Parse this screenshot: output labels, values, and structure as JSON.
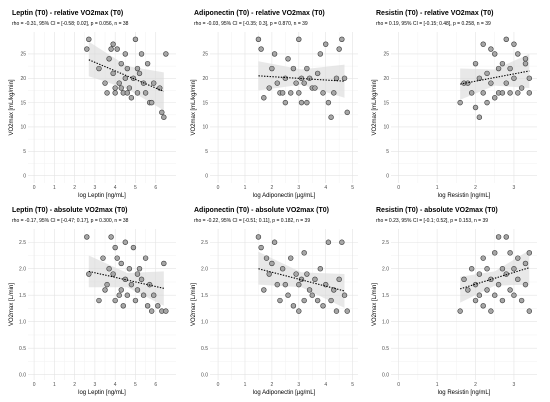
{
  "chart_data": [
    {
      "type": "scatter",
      "title": "Leptin (T0) - relative VO2max (T0)",
      "subtitle": "rho = -0.31, 95% CI = [-0.58; 0.02], p = 0.056, n = 38",
      "xlabel": "log Leptin [ng/mL]",
      "ylabel": "VO2max [mL/kg/min]",
      "xlim": [
        -0.3,
        7
      ],
      "xticks": [
        0,
        1,
        2,
        3,
        4,
        5,
        6
      ],
      "ylim": [
        -1.5,
        29.5
      ],
      "yticks": [
        0,
        5,
        10,
        15,
        20,
        25
      ],
      "trend": {
        "x0": 2.7,
        "y0": 23.8,
        "x1": 6.4,
        "y1": 17.3
      },
      "band": {
        "upper": [
          [
            2.7,
            27.5
          ],
          [
            4.6,
            22.5
          ],
          [
            6.4,
            21.2
          ]
        ],
        "lower": [
          [
            6.4,
            13.4
          ],
          [
            4.6,
            17.8
          ],
          [
            2.7,
            20.4
          ]
        ]
      },
      "points": [
        [
          2.6,
          26
        ],
        [
          2.7,
          28
        ],
        [
          3.2,
          22
        ],
        [
          3.5,
          19
        ],
        [
          3.6,
          17
        ],
        [
          3.7,
          24
        ],
        [
          3.8,
          26
        ],
        [
          3.9,
          27
        ],
        [
          3.9,
          21
        ],
        [
          4.0,
          18
        ],
        [
          4.0,
          17
        ],
        [
          4.1,
          26
        ],
        [
          4.2,
          19
        ],
        [
          4.3,
          23
        ],
        [
          4.3,
          18
        ],
        [
          4.4,
          17
        ],
        [
          4.5,
          25
        ],
        [
          4.5,
          20
        ],
        [
          4.6,
          17
        ],
        [
          4.6,
          22
        ],
        [
          4.7,
          18
        ],
        [
          4.8,
          16
        ],
        [
          4.9,
          20
        ],
        [
          5.0,
          28
        ],
        [
          5.1,
          22
        ],
        [
          5.1,
          17
        ],
        [
          5.2,
          21
        ],
        [
          5.3,
          25
        ],
        [
          5.4,
          19
        ],
        [
          5.5,
          17
        ],
        [
          5.6,
          23
        ],
        [
          5.7,
          15
        ],
        [
          5.8,
          15
        ],
        [
          5.9,
          19
        ],
        [
          6.2,
          18
        ],
        [
          6.3,
          13
        ],
        [
          6.4,
          12
        ],
        [
          6.5,
          25
        ]
      ]
    },
    {
      "type": "scatter",
      "title": "Adiponectin (T0) - relative VO2max (T0)",
      "subtitle": "rho = -0.03, 95% CI = [-0.35; 0.3], p = 0.870, n = 39",
      "xlabel": "log Adiponectin [µg/mL]",
      "ylabel": "VO2max [mL/kg/min]",
      "xlim": [
        -0.3,
        5.2
      ],
      "xticks": [
        0,
        1,
        2,
        3,
        4,
        5
      ],
      "ylim": [
        -1.5,
        29.5
      ],
      "yticks": [
        0,
        5,
        10,
        15,
        20,
        25
      ],
      "trend": {
        "x0": 1.5,
        "y0": 20.5,
        "x1": 4.7,
        "y1": 19.4
      },
      "band": {
        "upper": [
          [
            1.5,
            23.5
          ],
          [
            3.1,
            21.8
          ],
          [
            4.7,
            22.8
          ]
        ],
        "lower": [
          [
            4.7,
            16.0
          ],
          [
            3.1,
            18.7
          ],
          [
            1.5,
            17.5
          ]
        ]
      },
      "points": [
        [
          1.5,
          28
        ],
        [
          1.6,
          26
        ],
        [
          1.7,
          16
        ],
        [
          1.9,
          18
        ],
        [
          2.0,
          22
        ],
        [
          2.1,
          25
        ],
        [
          2.2,
          19
        ],
        [
          2.3,
          17
        ],
        [
          2.4,
          17
        ],
        [
          2.5,
          15
        ],
        [
          2.5,
          20
        ],
        [
          2.6,
          24
        ],
        [
          2.7,
          17
        ],
        [
          2.8,
          22
        ],
        [
          2.9,
          19
        ],
        [
          3.0,
          28
        ],
        [
          3.0,
          17
        ],
        [
          3.1,
          20
        ],
        [
          3.1,
          15
        ],
        [
          3.2,
          19
        ],
        [
          3.3,
          15
        ],
        [
          3.3,
          22
        ],
        [
          3.4,
          20
        ],
        [
          3.5,
          18
        ],
        [
          3.6,
          18
        ],
        [
          3.7,
          21
        ],
        [
          3.8,
          25
        ],
        [
          3.9,
          17
        ],
        [
          4.0,
          27
        ],
        [
          4.1,
          15
        ],
        [
          4.2,
          12
        ],
        [
          4.3,
          17
        ],
        [
          4.4,
          20
        ],
        [
          4.5,
          26
        ],
        [
          4.6,
          28
        ],
        [
          4.7,
          20
        ],
        [
          4.8,
          13
        ]
      ]
    },
    {
      "type": "scatter",
      "title": "Resistin (T0) - relative VO2max (T0)",
      "subtitle": "rho = 0.19, 95% CI = [-0.15; 0.48], p = 0.258, n = 39",
      "xlabel": "log Resistin [ng/mL]",
      "ylabel": "VO2max [mL/kg/min]",
      "xlim": [
        -0.2,
        3.6
      ],
      "xticks": [
        0,
        1,
        2,
        3
      ],
      "ylim": [
        -1.5,
        29.5
      ],
      "yticks": [
        0,
        5,
        10,
        15,
        20,
        25
      ],
      "trend": {
        "x0": 1.6,
        "y0": 18.8,
        "x1": 3.4,
        "y1": 21.5
      },
      "band": {
        "upper": [
          [
            1.6,
            22.0
          ],
          [
            2.5,
            21.8
          ],
          [
            3.4,
            25.0
          ]
        ],
        "lower": [
          [
            3.4,
            18.0
          ],
          [
            2.5,
            18.5
          ],
          [
            1.6,
            15.6
          ]
        ]
      },
      "points": [
        [
          1.6,
          15
        ],
        [
          1.7,
          19
        ],
        [
          1.8,
          19
        ],
        [
          1.9,
          17
        ],
        [
          2.0,
          23
        ],
        [
          2.0,
          14
        ],
        [
          2.1,
          12
        ],
        [
          2.1,
          20
        ],
        [
          2.2,
          27
        ],
        [
          2.2,
          17
        ],
        [
          2.3,
          15
        ],
        [
          2.3,
          21
        ],
        [
          2.4,
          19
        ],
        [
          2.4,
          26
        ],
        [
          2.5,
          16
        ],
        [
          2.5,
          25
        ],
        [
          2.6,
          17
        ],
        [
          2.6,
          22
        ],
        [
          2.7,
          17
        ],
        [
          2.7,
          23
        ],
        [
          2.8,
          28
        ],
        [
          2.8,
          19
        ],
        [
          2.9,
          22
        ],
        [
          2.9,
          17
        ],
        [
          3.0,
          20
        ],
        [
          3.0,
          27
        ],
        [
          3.1,
          17
        ],
        [
          3.1,
          25
        ],
        [
          3.2,
          18
        ],
        [
          3.3,
          23
        ],
        [
          3.3,
          24
        ],
        [
          3.4,
          17
        ],
        [
          3.4,
          20
        ]
      ]
    },
    {
      "type": "scatter",
      "title": "Leptin (T0) - absolute VO2max (T0)",
      "subtitle": "rho = -0.17, 95% CI = [-0.47; 0.17], p = 0.300, n = 38",
      "xlabel": "log Leptin [ng/mL]",
      "ylabel": "VO2max [L/min]",
      "xlim": [
        -0.3,
        7
      ],
      "xticks": [
        0,
        1,
        2,
        3,
        4,
        5,
        6
      ],
      "ylim": [
        -0.1,
        2.75
      ],
      "yticks": [
        0.0,
        0.5,
        1.0,
        1.5,
        2.0,
        2.5
      ],
      "trend": {
        "x0": 2.7,
        "y0": 1.95,
        "x1": 6.4,
        "y1": 1.63
      },
      "band": {
        "upper": [
          [
            2.7,
            2.25
          ],
          [
            4.6,
            1.92
          ],
          [
            6.4,
            1.95
          ]
        ],
        "lower": [
          [
            6.4,
            1.3
          ],
          [
            4.6,
            1.65
          ],
          [
            2.7,
            1.65
          ]
        ]
      },
      "points": [
        [
          2.6,
          2.6
        ],
        [
          2.7,
          1.9
        ],
        [
          3.2,
          1.4
        ],
        [
          3.4,
          2.2
        ],
        [
          3.5,
          1.6
        ],
        [
          3.6,
          1.7
        ],
        [
          3.7,
          2.0
        ],
        [
          3.8,
          2.6
        ],
        [
          3.9,
          1.9
        ],
        [
          4.0,
          2.4
        ],
        [
          4.0,
          1.4
        ],
        [
          4.1,
          2.2
        ],
        [
          4.2,
          1.5
        ],
        [
          4.3,
          2.1
        ],
        [
          4.3,
          1.6
        ],
        [
          4.4,
          1.3
        ],
        [
          4.5,
          1.8
        ],
        [
          4.5,
          2.5
        ],
        [
          4.6,
          1.5
        ],
        [
          4.7,
          2.0
        ],
        [
          4.8,
          1.7
        ],
        [
          4.9,
          2.4
        ],
        [
          5.0,
          1.4
        ],
        [
          5.1,
          1.9
        ],
        [
          5.1,
          1.6
        ],
        [
          5.2,
          2.0
        ],
        [
          5.3,
          1.8
        ],
        [
          5.4,
          1.5
        ],
        [
          5.5,
          2.2
        ],
        [
          5.6,
          1.3
        ],
        [
          5.7,
          1.7
        ],
        [
          5.8,
          1.2
        ],
        [
          5.9,
          1.5
        ],
        [
          6.1,
          1.3
        ],
        [
          6.3,
          1.2
        ],
        [
          6.4,
          2.1
        ],
        [
          6.5,
          1.2
        ]
      ]
    },
    {
      "type": "scatter",
      "title": "Adiponectin (T0) - absolute VO2max (T0)",
      "subtitle": "rho = -0.22, 95% CI = [-0.51; 0.11], p = 0.182, n = 39",
      "xlabel": "log Adiponectin [µg/mL]",
      "ylabel": "VO2max [L/min]",
      "xlim": [
        -0.3,
        5.2
      ],
      "xticks": [
        0,
        1,
        2,
        3,
        4,
        5
      ],
      "ylim": [
        -0.1,
        2.75
      ],
      "yticks": [
        0.0,
        0.5,
        1.0,
        1.5,
        2.0,
        2.5
      ],
      "trend": {
        "x0": 1.5,
        "y0": 2.0,
        "x1": 4.7,
        "y1": 1.58
      },
      "band": {
        "upper": [
          [
            1.5,
            2.32
          ],
          [
            3.1,
            1.93
          ],
          [
            4.7,
            1.9
          ]
        ],
        "lower": [
          [
            4.7,
            1.26
          ],
          [
            3.1,
            1.65
          ],
          [
            1.5,
            1.7
          ]
        ]
      },
      "points": [
        [
          1.5,
          2.6
        ],
        [
          1.6,
          2.4
        ],
        [
          1.7,
          1.6
        ],
        [
          1.8,
          2.2
        ],
        [
          1.9,
          1.9
        ],
        [
          2.0,
          2.1
        ],
        [
          2.1,
          2.5
        ],
        [
          2.2,
          1.7
        ],
        [
          2.3,
          1.4
        ],
        [
          2.4,
          2.0
        ],
        [
          2.5,
          1.7
        ],
        [
          2.6,
          1.5
        ],
        [
          2.7,
          2.2
        ],
        [
          2.8,
          1.3
        ],
        [
          2.9,
          1.9
        ],
        [
          3.0,
          1.7
        ],
        [
          3.0,
          1.2
        ],
        [
          3.1,
          1.8
        ],
        [
          3.2,
          2.3
        ],
        [
          3.2,
          1.4
        ],
        [
          3.3,
          1.9
        ],
        [
          3.4,
          1.6
        ],
        [
          3.5,
          1.5
        ],
        [
          3.6,
          1.8
        ],
        [
          3.7,
          1.4
        ],
        [
          3.8,
          2.0
        ],
        [
          3.9,
          1.3
        ],
        [
          4.0,
          1.7
        ],
        [
          4.1,
          2.5
        ],
        [
          4.2,
          1.4
        ],
        [
          4.3,
          1.6
        ],
        [
          4.4,
          1.2
        ],
        [
          4.5,
          1.8
        ],
        [
          4.6,
          2.5
        ],
        [
          4.7,
          1.5
        ],
        [
          4.8,
          1.2
        ]
      ]
    },
    {
      "type": "scatter",
      "title": "Resistin (T0) - absolute VO2max (T0)",
      "subtitle": "rho = 0.23, 95% CI = [-0.1; 0.52], p = 0.153, n = 39",
      "xlabel": "log Resistin [ng/mL]",
      "ylabel": "VO2max [L/min]",
      "xlim": [
        -0.2,
        3.6
      ],
      "xticks": [
        0,
        1,
        2,
        3
      ],
      "ylim": [
        -0.1,
        2.75
      ],
      "yticks": [
        0.0,
        0.5,
        1.0,
        1.5,
        2.0,
        2.5
      ],
      "trend": {
        "x0": 1.6,
        "y0": 1.62,
        "x1": 3.4,
        "y1": 2.02
      },
      "band": {
        "upper": [
          [
            1.6,
            1.85
          ],
          [
            2.5,
            1.95
          ],
          [
            3.4,
            2.35
          ]
        ],
        "lower": [
          [
            3.4,
            1.7
          ],
          [
            2.5,
            1.68
          ],
          [
            1.6,
            1.36
          ]
        ]
      },
      "points": [
        [
          1.6,
          1.2
        ],
        [
          1.7,
          1.8
        ],
        [
          1.8,
          1.6
        ],
        [
          1.9,
          2.0
        ],
        [
          2.0,
          1.4
        ],
        [
          2.0,
          1.7
        ],
        [
          2.1,
          1.5
        ],
        [
          2.1,
          1.9
        ],
        [
          2.2,
          1.3
        ],
        [
          2.2,
          2.2
        ],
        [
          2.3,
          1.6
        ],
        [
          2.3,
          2.0
        ],
        [
          2.4,
          1.2
        ],
        [
          2.4,
          1.8
        ],
        [
          2.5,
          1.5
        ],
        [
          2.5,
          2.3
        ],
        [
          2.6,
          1.7
        ],
        [
          2.6,
          2.6
        ],
        [
          2.7,
          1.4
        ],
        [
          2.7,
          2.0
        ],
        [
          2.8,
          2.6
        ],
        [
          2.8,
          1.9
        ],
        [
          2.9,
          1.6
        ],
        [
          2.9,
          2.3
        ],
        [
          3.0,
          1.5
        ],
        [
          3.0,
          2.0
        ],
        [
          3.1,
          1.8
        ],
        [
          3.1,
          2.2
        ],
        [
          3.2,
          1.4
        ],
        [
          3.3,
          1.7
        ],
        [
          3.3,
          2.1
        ],
        [
          3.4,
          1.2
        ],
        [
          3.4,
          2.3
        ]
      ]
    }
  ]
}
